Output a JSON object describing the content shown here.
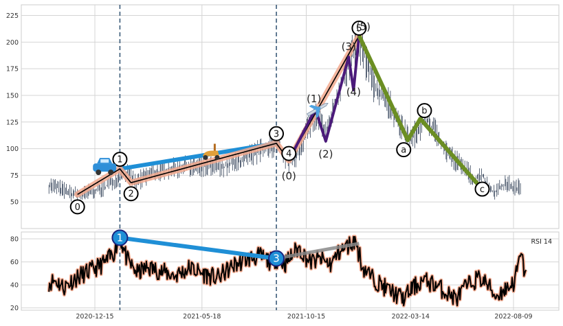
{
  "chart_data": [
    {
      "type": "line",
      "panel": "price",
      "ylim": [
        25,
        235
      ],
      "yticks": [
        50,
        75,
        100,
        125,
        150,
        175,
        200,
        225
      ],
      "grid": true,
      "price_path": [
        [
          "2020-10-10",
          66
        ],
        [
          "2020-10-25",
          63
        ],
        [
          "2020-11-10",
          58
        ],
        [
          "2020-11-25",
          56
        ],
        [
          "2020-12-10",
          60
        ],
        [
          "2020-12-28",
          63
        ],
        [
          "2021-01-15",
          72
        ],
        [
          "2021-01-25",
          80
        ],
        [
          "2021-02-05",
          74
        ],
        [
          "2021-02-12",
          68
        ],
        [
          "2021-03-01",
          75
        ],
        [
          "2021-03-25",
          80
        ],
        [
          "2021-04-20",
          83
        ],
        [
          "2021-05-18",
          84
        ],
        [
          "2021-06-15",
          82
        ],
        [
          "2021-07-10",
          88
        ],
        [
          "2021-08-01",
          95
        ],
        [
          "2021-08-25",
          102
        ],
        [
          "2021-09-05",
          106
        ],
        [
          "2021-09-10",
          97
        ],
        [
          "2021-09-20",
          86
        ],
        [
          "2021-09-30",
          92
        ],
        [
          "2021-10-15",
          115
        ],
        [
          "2021-10-28",
          130
        ],
        [
          "2021-11-05",
          128
        ],
        [
          "2021-11-12",
          112
        ],
        [
          "2021-11-25",
          140
        ],
        [
          "2021-12-08",
          170
        ],
        [
          "2021-12-18",
          180
        ],
        [
          "2021-12-28",
          205
        ],
        [
          "2022-01-08",
          185
        ],
        [
          "2022-01-20",
          160
        ],
        [
          "2022-02-05",
          150
        ],
        [
          "2022-02-20",
          130
        ],
        [
          "2022-03-05",
          115
        ],
        [
          "2022-03-14",
          108
        ],
        [
          "2022-03-25",
          118
        ],
        [
          "2022-04-05",
          128
        ],
        [
          "2022-04-20",
          115
        ],
        [
          "2022-05-05",
          98
        ],
        [
          "2022-05-20",
          88
        ],
        [
          "2022-06-05",
          78
        ],
        [
          "2022-06-15",
          70
        ],
        [
          "2022-06-25",
          76
        ],
        [
          "2022-07-05",
          62
        ],
        [
          "2022-07-15",
          60
        ],
        [
          "2022-08-01",
          68
        ],
        [
          "2022-08-09",
          63
        ],
        [
          "2022-08-20",
          64
        ]
      ],
      "dashed_lines": [
        "2021-01-20",
        "2021-09-02"
      ],
      "impulse": {
        "labels": [
          "0",
          "1",
          "2",
          "3",
          "4",
          "5"
        ],
        "points": [
          [
            "2020-11-20",
            57
          ],
          [
            "2021-01-20",
            81
          ],
          [
            "2021-02-05",
            68
          ],
          [
            "2021-09-02",
            105
          ],
          [
            "2021-09-20",
            89
          ],
          [
            "2021-12-30",
            206
          ]
        ]
      },
      "subwave": {
        "labels": [
          "(0)",
          "(1)",
          "(2)",
          "(3)",
          "(4)",
          "(5)"
        ],
        "points": [
          [
            "2021-09-20",
            89
          ],
          [
            "2021-10-28",
            137
          ],
          [
            "2021-11-12",
            107
          ],
          [
            "2021-12-15",
            186
          ],
          [
            "2021-12-22",
            155
          ],
          [
            "2021-12-30",
            206
          ]
        ]
      },
      "correction": {
        "labels": [
          "a",
          "b",
          "c"
        ],
        "points": [
          [
            "2021-12-30",
            206
          ],
          [
            "2022-03-10",
            108
          ],
          [
            "2022-03-28",
            128
          ],
          [
            "2022-06-25",
            62
          ]
        ]
      },
      "trend_1_3": [
        [
          "2021-01-20",
          81
        ],
        [
          "2021-09-02",
          105
        ]
      ],
      "colors": {
        "candles": "#2f3e55",
        "impulse_line": "#000000",
        "impulse_glow": "#f2a98e",
        "subwave": "#4b1a7a",
        "correction": "#6b8e23",
        "trendline": "#1f8fd6",
        "grid": "#d4d4d4",
        "dashed": "#3a5a78"
      },
      "icons": [
        "car-emoji",
        "scooter-emoji",
        "airplane-emoji"
      ]
    },
    {
      "type": "line",
      "panel": "rsi",
      "ylim": [
        18,
        86
      ],
      "yticks": [
        20,
        40,
        60,
        80
      ],
      "series": [
        {
          "name": "RSI 14",
          "values": [
            [
              "2020-10-10",
              42
            ],
            [
              "2020-10-20",
              44
            ],
            [
              "2020-11-01",
              38
            ],
            [
              "2020-11-15",
              45
            ],
            [
              "2020-12-01",
              50
            ],
            [
              "2020-12-15",
              54
            ],
            [
              "2021-01-01",
              60
            ],
            [
              "2021-01-12",
              68
            ],
            [
              "2021-01-20",
              82
            ],
            [
              "2021-02-01",
              60
            ],
            [
              "2021-02-15",
              50
            ],
            [
              "2021-03-01",
              55
            ],
            [
              "2021-03-20",
              52
            ],
            [
              "2021-04-10",
              48
            ],
            [
              "2021-05-01",
              55
            ],
            [
              "2021-05-18",
              50
            ],
            [
              "2021-06-10",
              46
            ],
            [
              "2021-07-01",
              56
            ],
            [
              "2021-07-20",
              62
            ],
            [
              "2021-08-10",
              65
            ],
            [
              "2021-08-25",
              60
            ],
            [
              "2021-09-02",
              63
            ],
            [
              "2021-09-15",
              58
            ],
            [
              "2021-09-25",
              66
            ],
            [
              "2021-10-05",
              72
            ],
            [
              "2021-10-20",
              60
            ],
            [
              "2021-11-05",
              62
            ],
            [
              "2021-11-20",
              58
            ],
            [
              "2021-12-01",
              68
            ],
            [
              "2021-12-15",
              74
            ],
            [
              "2021-12-25",
              79
            ],
            [
              "2022-01-05",
              55
            ],
            [
              "2022-01-20",
              45
            ],
            [
              "2022-02-05",
              38
            ],
            [
              "2022-02-20",
              32
            ],
            [
              "2022-03-05",
              28
            ],
            [
              "2022-03-15",
              36
            ],
            [
              "2022-04-01",
              44
            ],
            [
              "2022-04-20",
              40
            ],
            [
              "2022-05-05",
              33
            ],
            [
              "2022-05-20",
              28
            ],
            [
              "2022-06-01",
              38
            ],
            [
              "2022-06-20",
              46
            ],
            [
              "2022-07-01",
              42
            ],
            [
              "2022-07-15",
              30
            ],
            [
              "2022-08-01",
              38
            ],
            [
              "2022-08-10",
              42
            ],
            [
              "2022-08-20",
              66
            ],
            [
              "2022-08-28",
              45
            ]
          ]
        }
      ],
      "divergence": {
        "labels": [
          "1",
          "3"
        ],
        "points": [
          [
            "2021-01-20",
            81
          ],
          [
            "2021-09-02",
            63
          ]
        ],
        "continuation": [
          [
            "2021-09-02",
            63
          ],
          [
            "2021-12-30",
            76
          ]
        ]
      },
      "label_text": "RSI 14",
      "colors": {
        "rsi_line": "#000000",
        "rsi_glow": "#f2a98e",
        "divergence_line": "#1f8fd6",
        "continuation": "#888888",
        "circle_fill": "#1f8fd6",
        "circle_stroke": "#1a237e"
      }
    }
  ],
  "x_axis": {
    "ticks": [
      "2020-12-15",
      "2021-05-18",
      "2021-10-15",
      "2022-03-14",
      "2022-08-09"
    ]
  }
}
